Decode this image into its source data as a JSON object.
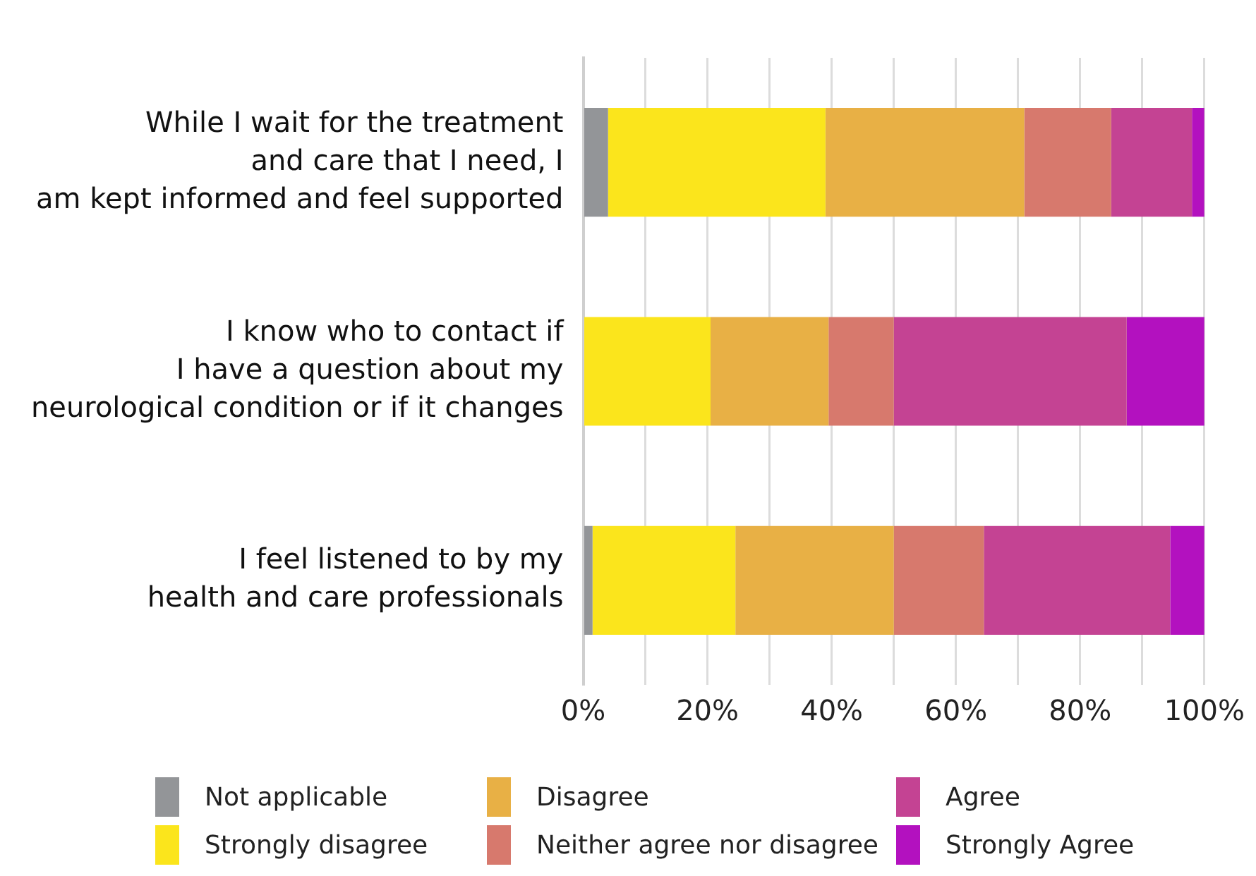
{
  "chart_data": {
    "type": "bar",
    "orientation": "horizontal",
    "stacked": true,
    "categories": [
      "While I wait for the treatment\nand care that I need, I\nam kept informed and feel supported",
      "I know who to contact if\nI have a question about my\nneurological condition or if it changes",
      "I feel listened to by my\nhealth and care professionals"
    ],
    "series": [
      {
        "name": "Not applicable",
        "color": "#939598",
        "values": [
          4,
          0,
          1.5
        ]
      },
      {
        "name": "Strongly disagree",
        "color": "#fbe51c",
        "values": [
          35,
          20.5,
          23
        ]
      },
      {
        "name": "Disagree",
        "color": "#e8b045",
        "values": [
          32,
          19,
          25.5
        ]
      },
      {
        "name": "Neither agree nor disagree",
        "color": "#d7796d",
        "values": [
          14,
          10.5,
          14.5
        ]
      },
      {
        "name": "Agree",
        "color": "#c44393",
        "values": [
          13,
          37.5,
          30
        ]
      },
      {
        "name": "Strongly Agree",
        "color": "#b311bf",
        "values": [
          2,
          12.5,
          5.5
        ]
      }
    ],
    "xlim": [
      0,
      100
    ],
    "xticks": [
      {
        "value": 0,
        "label": "0%"
      },
      {
        "value": 10,
        "label": null
      },
      {
        "value": 20,
        "label": "20%"
      },
      {
        "value": 30,
        "label": null
      },
      {
        "value": 40,
        "label": "40%"
      },
      {
        "value": 50,
        "label": null
      },
      {
        "value": 60,
        "label": "60%"
      },
      {
        "value": 70,
        "label": null
      },
      {
        "value": 80,
        "label": "80%"
      },
      {
        "value": 90,
        "label": null
      },
      {
        "value": 100,
        "label": "100%"
      }
    ],
    "grid": "x",
    "legend": "bottom"
  }
}
